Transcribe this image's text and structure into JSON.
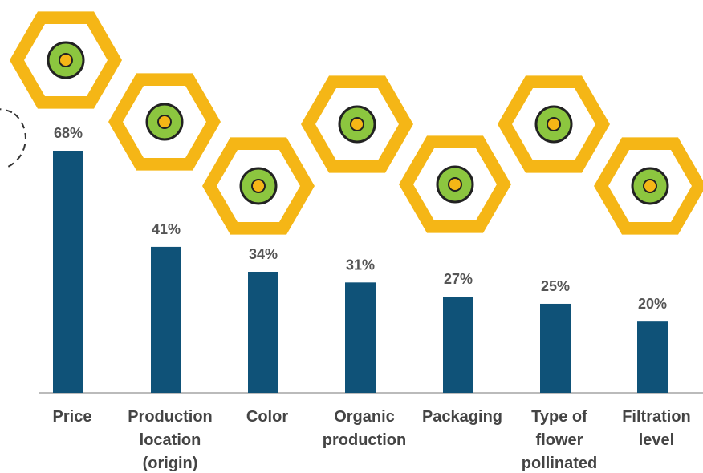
{
  "chart_data": {
    "type": "bar",
    "categories": [
      "Price",
      "Production location (origin)",
      "Color",
      "Organic production",
      "Packaging",
      "Type of flower pollinated",
      "Filtration level"
    ],
    "values": [
      68,
      41,
      34,
      31,
      27,
      25,
      20
    ],
    "value_labels": [
      "68%",
      "41%",
      "34%",
      "31%",
      "27%",
      "25%",
      "20%"
    ],
    "color": "#0f5278"
  }
}
